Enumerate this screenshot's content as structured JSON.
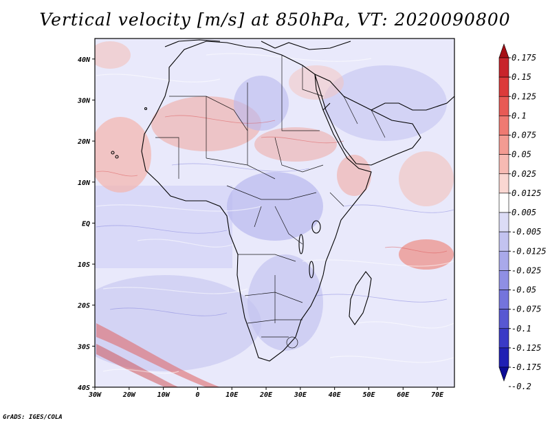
{
  "title": "Vertical velocity [m/s] at 850hPa, VT: 2020090800",
  "credit": "GrADS: IGES/COLA",
  "map": {
    "lon_range": [
      -30,
      75
    ],
    "lat_range": [
      -40,
      45
    ],
    "x_ticks": [
      "30W",
      "20W",
      "10W",
      "0",
      "10E",
      "20E",
      "30E",
      "40E",
      "50E",
      "60E",
      "70E"
    ],
    "x_tick_values": [
      -30,
      -20,
      -10,
      0,
      10,
      20,
      30,
      40,
      50,
      60,
      70
    ],
    "y_ticks": [
      "40N",
      "30N",
      "20N",
      "10N",
      "EQ",
      "10S",
      "20S",
      "30S",
      "40S"
    ],
    "y_tick_values": [
      40,
      30,
      20,
      10,
      0,
      -10,
      -20,
      -30,
      -40
    ]
  },
  "colorbar": {
    "labels": [
      "0.175",
      "0.15",
      "0.125",
      "0.1",
      "0.075",
      "0.05",
      "0.025",
      "0.0125",
      "0.005",
      "-0.005",
      "-0.0125",
      "-0.025",
      "-0.05",
      "-0.075",
      "-0.1",
      "-0.125",
      "-0.175",
      "-0.2"
    ],
    "colors": [
      "#a50f15",
      "#c8242b",
      "#dc3a3a",
      "#e85a55",
      "#ef7a72",
      "#f39b92",
      "#f7bab3",
      "#fad7d2",
      "#ffffff",
      "#dcdcf6",
      "#c3c3f0",
      "#a9a9ea",
      "#8f8fe4",
      "#7474dc",
      "#5858d2",
      "#3a3ac6",
      "#2020b4",
      "#0c0c96"
    ]
  }
}
